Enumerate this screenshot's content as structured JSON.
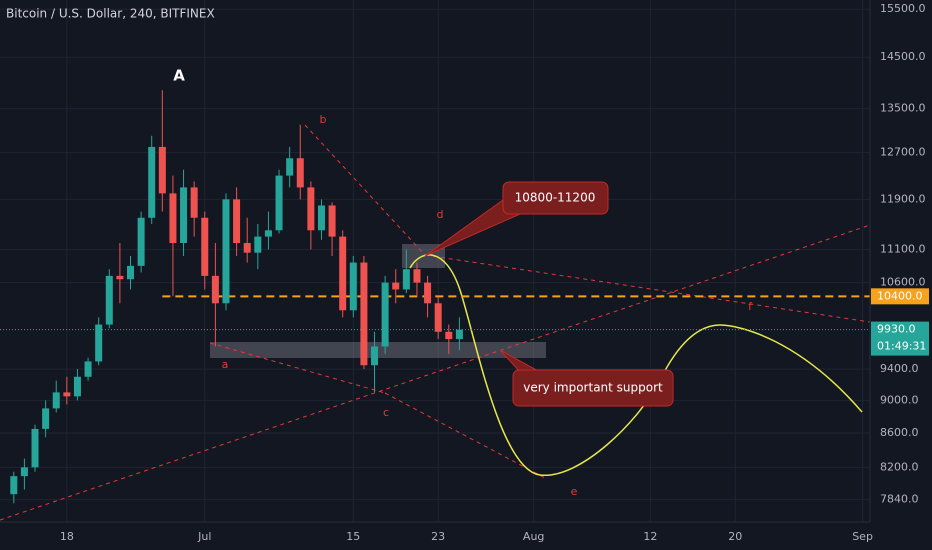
{
  "chart_data": {
    "type": "candlestick",
    "title": "Bitcoin / U.S. Dollar, 240, BITFINEX",
    "x": [
      12,
      13,
      14,
      15,
      16,
      17,
      18,
      19,
      20,
      21,
      22,
      23,
      24,
      25,
      26,
      27,
      28,
      29,
      30,
      31,
      32,
      33,
      34,
      35,
      36,
      37,
      38,
      39,
      40,
      41,
      42,
      43,
      44,
      45,
      46,
      47,
      48,
      49,
      50,
      51,
      52,
      53,
      54
    ],
    "open": [
      7900,
      8100,
      8200,
      8650,
      8900,
      9100,
      9050,
      9300,
      9500,
      10000,
      10700,
      10650,
      10850,
      11600,
      12800,
      12000,
      11200,
      12100,
      11600,
      10700,
      10300,
      11900,
      11200,
      11050,
      11300,
      11400,
      12300,
      12600,
      12100,
      11400,
      11800,
      11300,
      10200,
      10900,
      9450,
      9700,
      10600,
      10500,
      10800,
      10600,
      10300,
      9900,
      9800
    ],
    "high": [
      8150,
      8300,
      8700,
      9000,
      9250,
      9300,
      9400,
      9550,
      10100,
      10800,
      11200,
      11000,
      11700,
      13000,
      13850,
      12300,
      12400,
      12200,
      11700,
      11200,
      12000,
      12100,
      11600,
      11500,
      11700,
      12400,
      12800,
      13200,
      12200,
      11900,
      11850,
      11400,
      11000,
      11000,
      9900,
      10700,
      10800,
      11100,
      10900,
      10700,
      10400,
      10000,
      10100
    ],
    "low": [
      7800,
      7950,
      8150,
      8550,
      8850,
      8950,
      9000,
      9250,
      9450,
      9950,
      10300,
      10500,
      10750,
      11500,
      11700,
      10400,
      11000,
      11300,
      10500,
      9700,
      10200,
      11000,
      10900,
      10800,
      11100,
      11350,
      12100,
      11900,
      11100,
      11250,
      11000,
      10100,
      10100,
      9400,
      9100,
      9600,
      10300,
      10450,
      10400,
      10100,
      9800,
      9600,
      9650
    ],
    "close": [
      8100,
      8200,
      8650,
      8900,
      9100,
      9050,
      9300,
      9500,
      10000,
      10700,
      10650,
      10850,
      11600,
      12800,
      12000,
      11200,
      12100,
      11600,
      10700,
      10300,
      11900,
      11200,
      11050,
      11300,
      11400,
      12300,
      12600,
      12100,
      11400,
      11800,
      11300,
      10200,
      10900,
      9450,
      9700,
      10600,
      10500,
      10800,
      10600,
      10300,
      9900,
      9800,
      9930
    ],
    "xlim": [
      10.7,
      92.7
    ],
    "xticks": [
      {
        "value": 17,
        "label": "18"
      },
      {
        "value": 30,
        "label": "Jul"
      },
      {
        "value": 44,
        "label": "15"
      },
      {
        "value": 52,
        "label": "23"
      },
      {
        "value": 61,
        "label": "Aug"
      },
      {
        "value": 72,
        "label": "12"
      },
      {
        "value": 80,
        "label": "20"
      },
      {
        "value": 92,
        "label": "Sep"
      }
    ],
    "ylim": [
      7600,
      15700
    ],
    "yticks": [
      {
        "value": 7840,
        "label": "7840.0"
      },
      {
        "value": 8200,
        "label": "8200.0"
      },
      {
        "value": 8600,
        "label": "8600.0"
      },
      {
        "value": 9000,
        "label": "9000.0"
      },
      {
        "value": 9400,
        "label": "9400.0"
      },
      {
        "value": 10600,
        "label": "10600.0"
      },
      {
        "value": 11100,
        "label": "11100.0"
      },
      {
        "value": 11900,
        "label": "11900.0"
      },
      {
        "value": 12700,
        "label": "12700.0"
      },
      {
        "value": 13500,
        "label": "13500.0"
      },
      {
        "value": 14500,
        "label": "14500.0"
      },
      {
        "value": 15500,
        "label": "15500.0"
      }
    ],
    "log_scale": true,
    "grid": true,
    "up_color": "#26a69a",
    "down_color": "#ef5350",
    "price_line": {
      "value": 9930,
      "label": "9930.0",
      "color": "#26a69a"
    },
    "countdown": "01:49:31",
    "level_line": {
      "value": 10400,
      "label": "10400.0",
      "color": "#f7a21b"
    },
    "annotations": [
      "A",
      "a",
      "b",
      "c",
      "d",
      "e",
      "f",
      "10800-11200",
      "very important support"
    ]
  }
}
